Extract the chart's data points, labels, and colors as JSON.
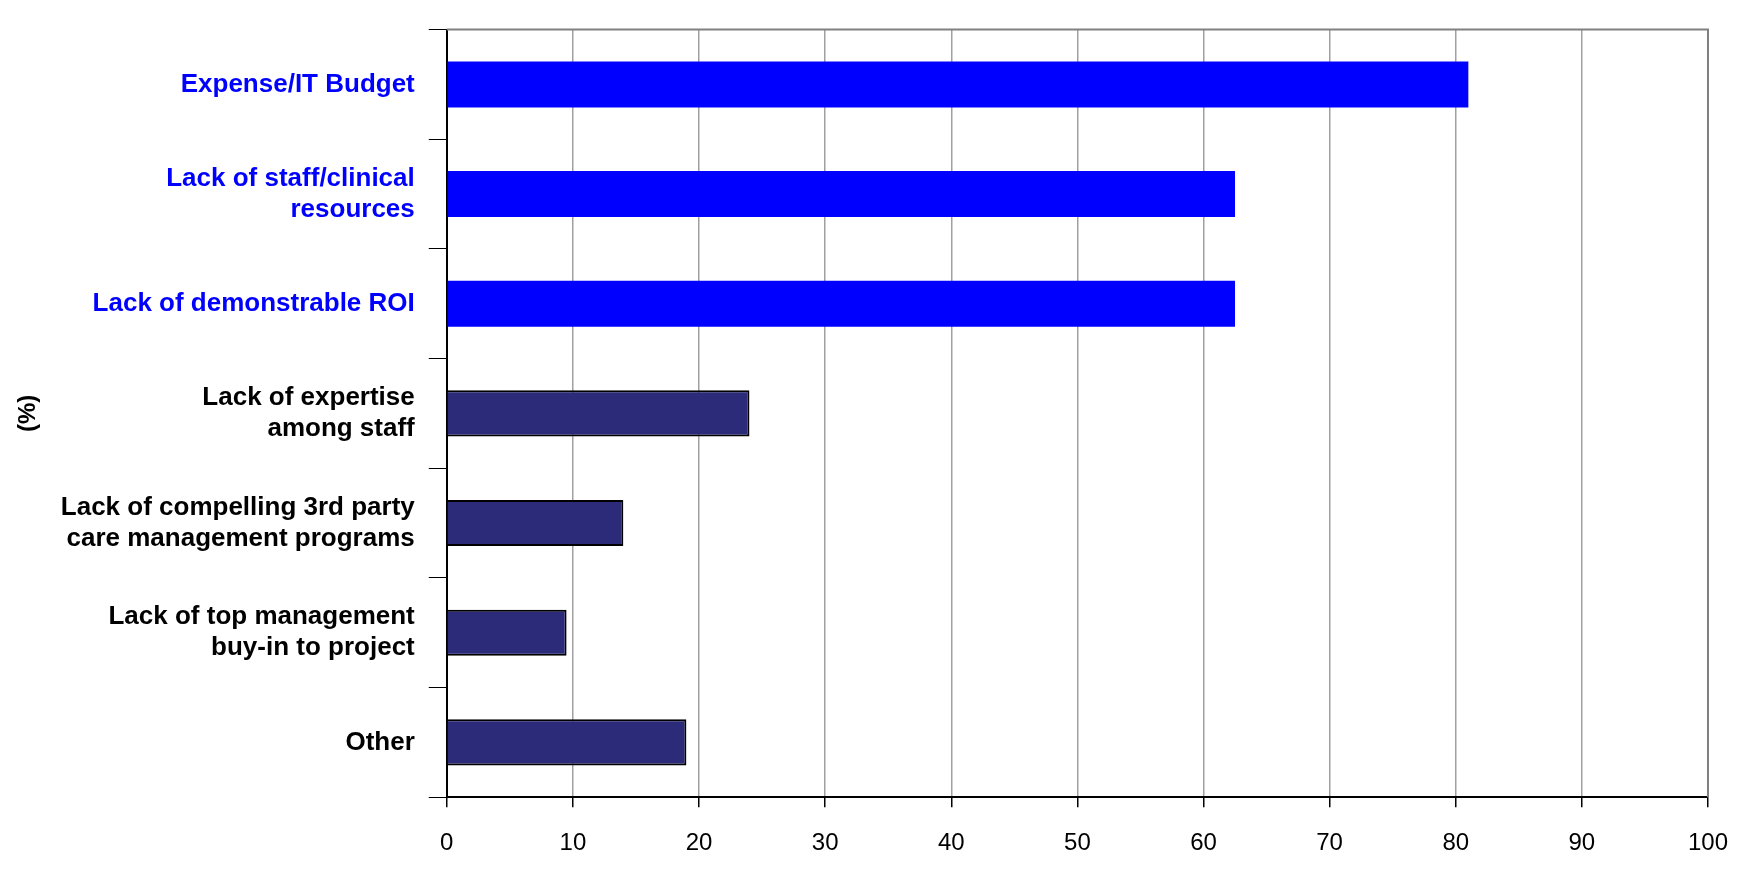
{
  "chart_data": {
    "type": "bar",
    "orientation": "horizontal",
    "ylabel": "(%)",
    "categories": [
      "Expense/IT Budget",
      "Lack of staff/clinical\nresources",
      "Lack of demonstrable ROI",
      "Lack of expertise\namong staff",
      "Lack of compelling 3rd party\ncare management programs",
      "Lack of top management\nbuy-in to project",
      "Other"
    ],
    "values": [
      81,
      62.5,
      62.5,
      24,
      14,
      9.5,
      19
    ],
    "colors": [
      "#0000ff",
      "#0000ff",
      "#0000ff",
      "#2b2b7a",
      "#2b2b7a",
      "#2b2b7a",
      "#2b2b7a"
    ],
    "xlim": [
      0,
      100
    ],
    "xticks": [
      0,
      10,
      20,
      30,
      40,
      50,
      60,
      70,
      80,
      90,
      100
    ],
    "grid": "x",
    "legend": false
  }
}
